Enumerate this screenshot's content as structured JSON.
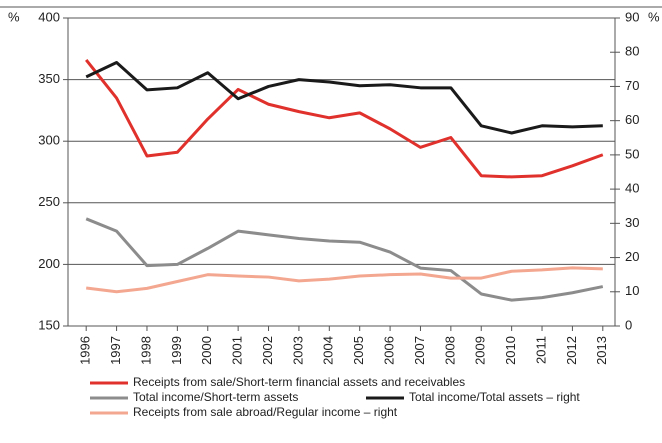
{
  "chart_data": {
    "type": "line",
    "ylabel": "%",
    "y2label": "%",
    "categories": [
      "1996",
      "1997",
      "1998",
      "1999",
      "2000",
      "2001",
      "2002",
      "2003",
      "2004",
      "2005",
      "2006",
      "2007",
      "2008",
      "2009",
      "2010",
      "2011",
      "2012",
      "2013"
    ],
    "series": [
      {
        "name": "Receipts from sale/Short-term financial assets and receivables",
        "color": "#e0312c",
        "values": [
          366,
          335,
          288,
          291,
          318,
          342,
          330,
          324,
          319,
          323,
          310,
          295,
          303,
          272,
          271,
          272,
          280,
          289
        ]
      },
      {
        "name": "Total income/Short-term assets",
        "color": "#8c8c8c",
        "values": [
          237,
          227,
          199,
          200,
          213,
          227,
          224,
          221,
          219,
          218,
          210,
          197,
          195,
          176,
          171,
          173,
          177,
          182
        ]
      },
      {
        "name": "Total income/Total assets – right",
        "color": "#1a1a1a",
        "axis": "y2",
        "values": [
          72.8,
          77,
          69,
          69.6,
          74,
          66.4,
          70,
          72,
          71.3,
          70.2,
          70.5,
          69.6,
          69.6,
          58.5,
          56.4,
          58.5,
          58.2,
          58.5
        ]
      },
      {
        "name": "Receipts from sale abroad/Regular income – right",
        "color": "#f4a790",
        "axis": "y2",
        "values": [
          11.1,
          10,
          11,
          13,
          15,
          14.6,
          14.3,
          13.2,
          13.7,
          14.6,
          15,
          15.2,
          14,
          14,
          16,
          16.4,
          17,
          16.7
        ]
      }
    ],
    "ylim": [
      150,
      400
    ],
    "yticks": [
      150,
      200,
      250,
      300,
      350,
      400
    ],
    "y2lim": [
      0,
      90
    ],
    "y2ticks": [
      0,
      10,
      20,
      30,
      40,
      50,
      60,
      70,
      80,
      90
    ],
    "grid": true
  }
}
